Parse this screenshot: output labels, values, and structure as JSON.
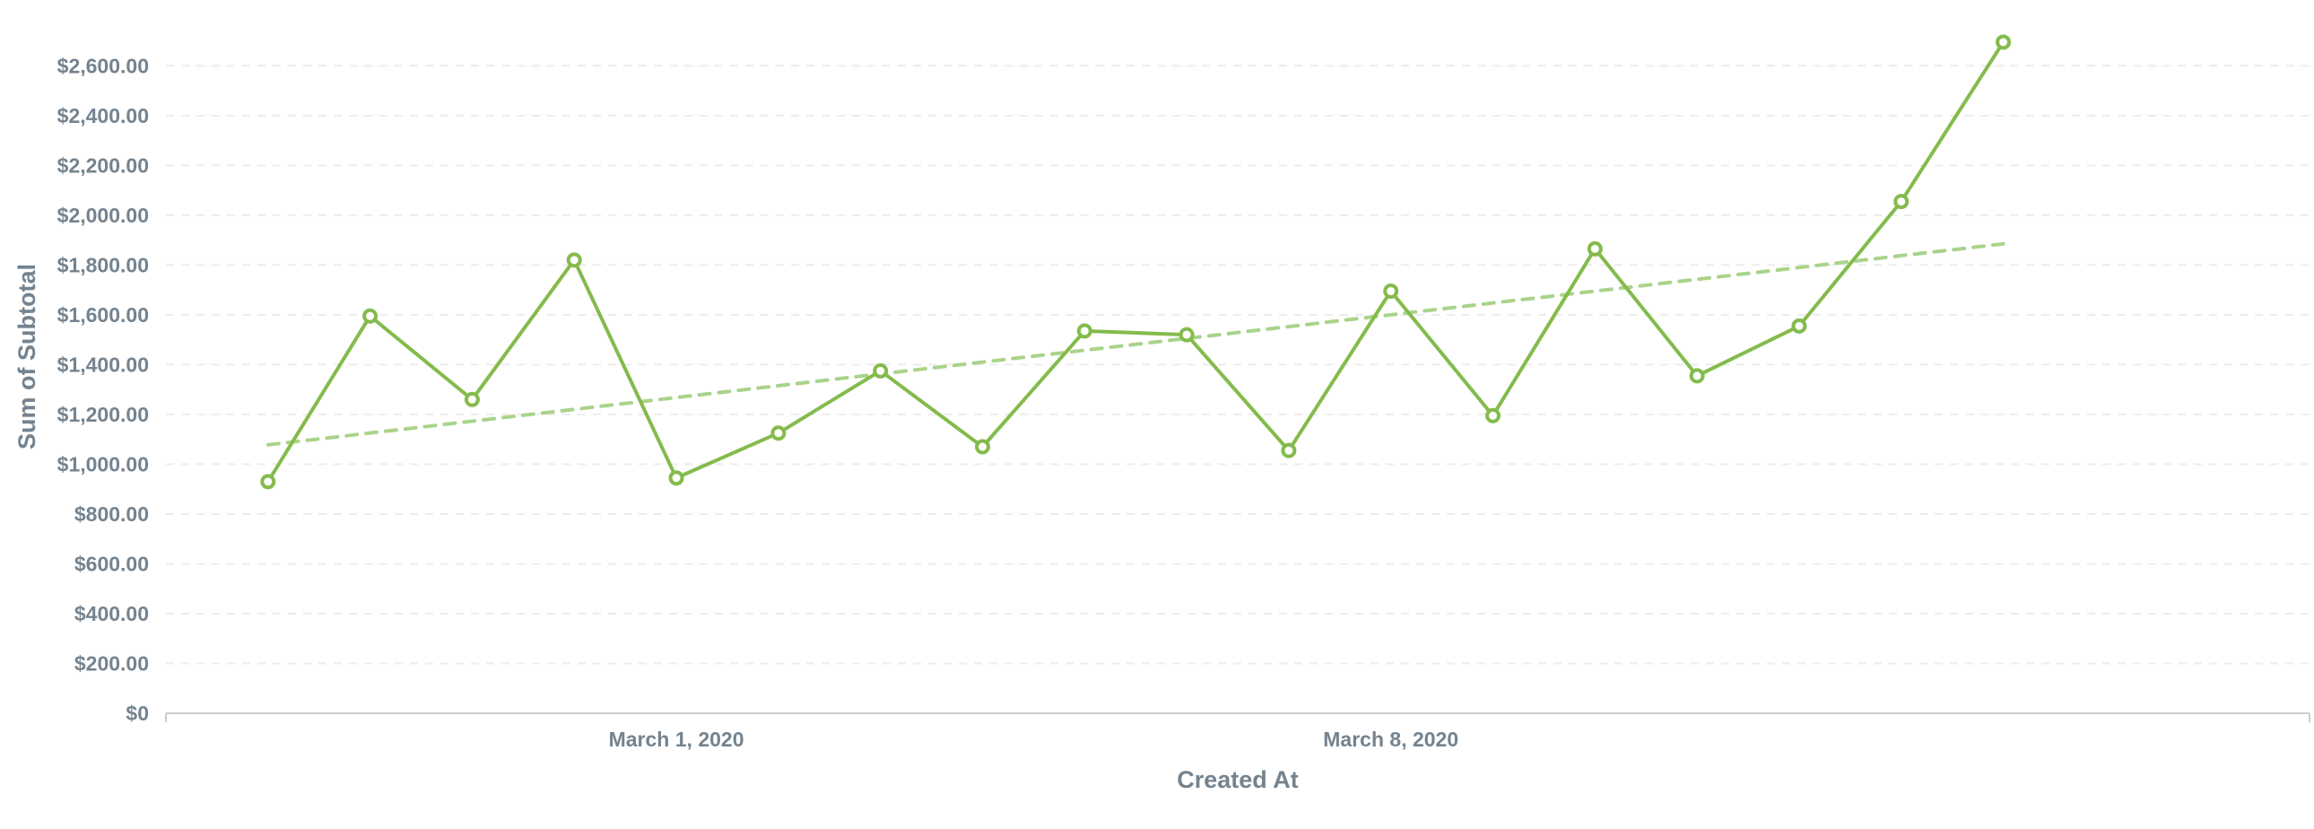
{
  "colors": {
    "series": "#84bb4c",
    "trend": "#a9d38a",
    "text": "#74838f",
    "grid": "#ececec",
    "axis": "#c9ced3"
  },
  "chart_data": {
    "type": "line",
    "title": "",
    "xlabel": "Created At",
    "ylabel": "Sum of Subtotal",
    "x_tick_labels": [
      {
        "date": "2020-03-01",
        "label": "March 1, 2020"
      },
      {
        "date": "2020-03-08",
        "label": "March 8, 2020"
      }
    ],
    "y_ticks": [
      0,
      200,
      400,
      600,
      800,
      1000,
      1200,
      1400,
      1600,
      1800,
      2000,
      2200,
      2400,
      2600
    ],
    "y_tick_labels": [
      "$0",
      "$200.00",
      "$400.00",
      "$600.00",
      "$800.00",
      "$1,000.00",
      "$1,200.00",
      "$1,400.00",
      "$1,600.00",
      "$1,800.00",
      "$2,000.00",
      "$2,200.00",
      "$2,400.00",
      "$2,600.00"
    ],
    "ylim": [
      0,
      2600
    ],
    "xlim": [
      "2020-02-25",
      "2020-03-17"
    ],
    "grid": true,
    "legend": "none",
    "series": [
      {
        "x": [
          "2020-02-26",
          "2020-02-27",
          "2020-02-28",
          "2020-02-29",
          "2020-03-01",
          "2020-03-02",
          "2020-03-03",
          "2020-03-04",
          "2020-03-05",
          "2020-03-06",
          "2020-03-07",
          "2020-03-08",
          "2020-03-09",
          "2020-03-10",
          "2020-03-11",
          "2020-03-12",
          "2020-03-13",
          "2020-03-14"
        ],
        "values": [
          930,
          1595,
          1260,
          1820,
          945,
          1125,
          1375,
          1070,
          1535,
          1520,
          1055,
          1695,
          1195,
          1865,
          1355,
          1555,
          2055,
          2695
        ],
        "style": "solid-with-markers"
      }
    ],
    "trendline": {
      "x": [
        "2020-02-26",
        "2020-03-14"
      ],
      "values": [
        1078,
        1885
      ],
      "style": "dashed"
    }
  }
}
